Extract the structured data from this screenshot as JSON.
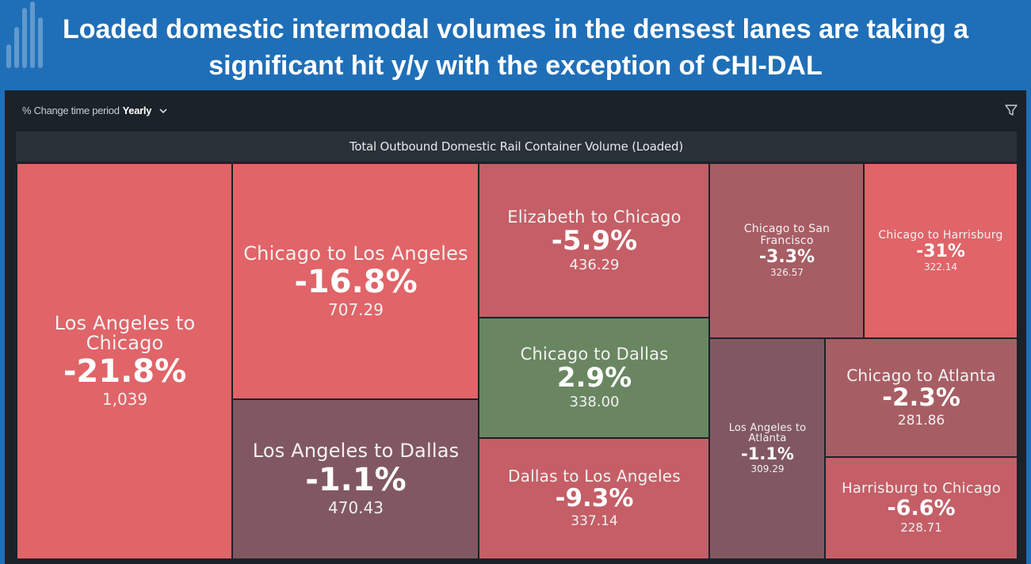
{
  "headline": "Loaded domestic intermodal volumes in the densest lanes are taking a significant hit y/y with the exception of CHI-DAL",
  "controls": {
    "period_label": "% Change time period",
    "period_value": "Yearly",
    "chevron_icon": "chevron-down-icon",
    "filter_icon": "filter-icon"
  },
  "colors": {
    "banner": "#1f6fb8",
    "panel": "#1b2229",
    "decline_strong": "#e06468",
    "decline_moderate": "#c55e66",
    "decline_mild": "#a75d64",
    "decline_slight": "#815861",
    "increase": "#698661"
  },
  "chart_data": {
    "type": "treemap",
    "title": "Total Outbound Domestic Rail Container Volume (Loaded)",
    "tiles": [
      {
        "name": "Los Angeles to Chicago",
        "change": "-21.8%",
        "value": "1,039"
      },
      {
        "name": "Chicago to Los Angeles",
        "change": "-16.8%",
        "value": "707.29"
      },
      {
        "name": "Los Angeles to Dallas",
        "change": "-1.1%",
        "value": "470.43"
      },
      {
        "name": "Elizabeth to Chicago",
        "change": "-5.9%",
        "value": "436.29"
      },
      {
        "name": "Chicago to Dallas",
        "change": "2.9%",
        "value": "338.00"
      },
      {
        "name": "Dallas to Los Angeles",
        "change": "-9.3%",
        "value": "337.14"
      },
      {
        "name": "Chicago to San Francisco",
        "change": "-3.3%",
        "value": "326.57"
      },
      {
        "name": "Chicago to Harrisburg",
        "change": "-31%",
        "value": "322.14"
      },
      {
        "name": "Los Angeles to Atlanta",
        "change": "-1.1%",
        "value": "309.29"
      },
      {
        "name": "Chicago to Atlanta",
        "change": "-2.3%",
        "value": "281.86"
      },
      {
        "name": "Harrisburg to Chicago",
        "change": "-6.6%",
        "value": "228.71"
      }
    ]
  }
}
